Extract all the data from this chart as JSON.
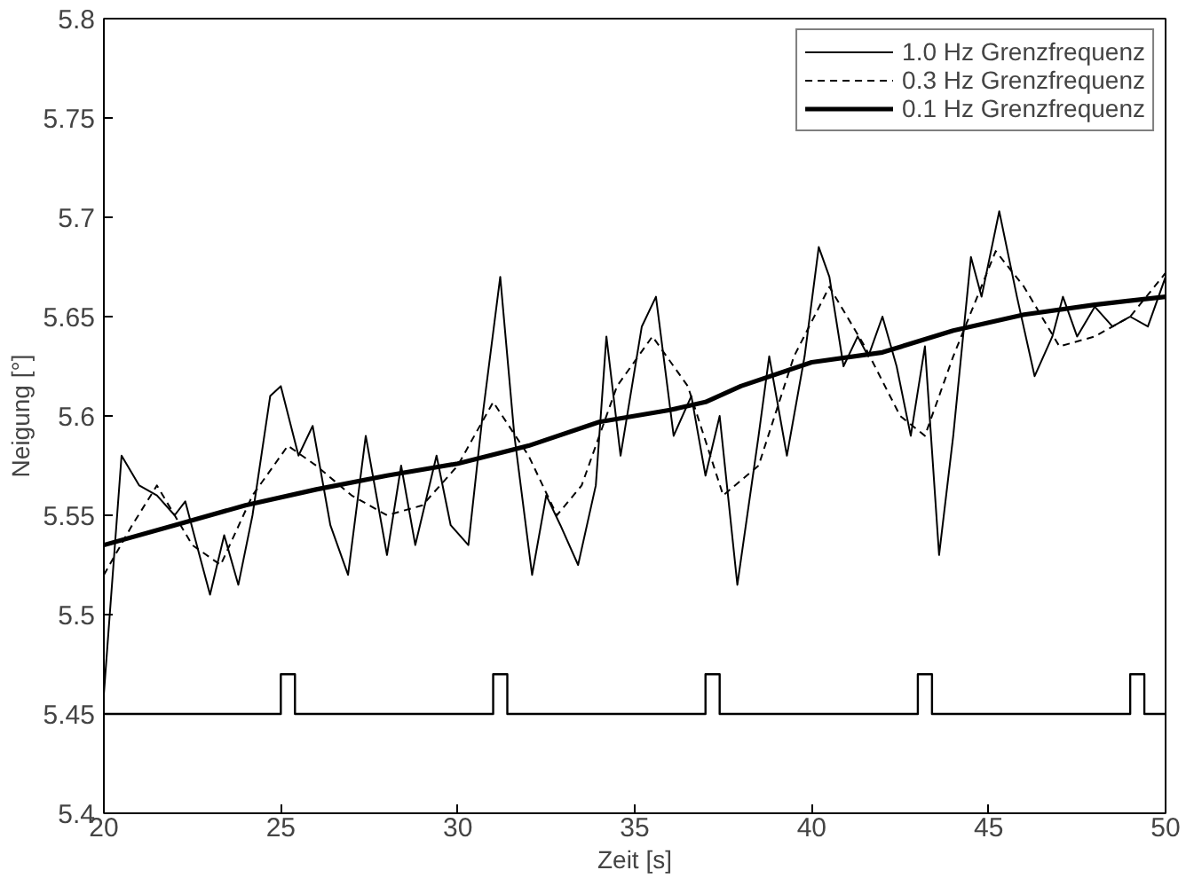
{
  "chart_data": {
    "type": "line",
    "xlabel": "Zeit [s]",
    "ylabel": "Neigung [°]",
    "xlim": [
      20,
      50
    ],
    "xticks": [
      20,
      25,
      30,
      35,
      40,
      45,
      50
    ],
    "ylim": [
      5.4,
      5.8
    ],
    "yticks": [
      5.4,
      5.45,
      5.5,
      5.55,
      5.6,
      5.65,
      5.7,
      5.75,
      5.8
    ],
    "grid": false,
    "legend": "top right",
    "marker": "none",
    "series": [
      {
        "name": "1.0 Hz Grenzfrequenz",
        "color": "#000000",
        "line_style": "solid",
        "x": [
          20,
          20.5,
          21,
          21.5,
          22,
          22.3,
          22.7,
          23,
          23.4,
          23.8,
          24.2,
          24.7,
          25.0,
          25.5,
          25.9,
          26.4,
          26.9,
          27.4,
          28,
          28.4,
          28.8,
          29.4,
          29.8,
          30.3,
          30.7,
          31.2,
          31.6,
          32.1,
          32.5,
          32.9,
          33.4,
          33.9,
          34.2,
          34.6,
          35.2,
          35.6,
          36.1,
          36.6,
          37.0,
          37.4,
          37.9,
          38.5,
          38.8,
          39.3,
          39.8,
          40.2,
          40.5,
          40.9,
          41.3,
          41.6,
          42.0,
          42.4,
          42.8,
          43.2,
          43.6,
          44.0,
          44.5,
          44.8,
          45.3,
          45.8,
          46.3,
          46.8,
          47.1,
          47.5,
          48.0,
          48.5,
          49.0,
          49.5,
          50
        ],
        "values": [
          5.46,
          5.58,
          5.565,
          5.56,
          5.55,
          5.557,
          5.53,
          5.51,
          5.54,
          5.515,
          5.55,
          5.61,
          5.615,
          5.58,
          5.595,
          5.545,
          5.52,
          5.59,
          5.53,
          5.575,
          5.535,
          5.58,
          5.545,
          5.535,
          5.6,
          5.67,
          5.59,
          5.52,
          5.56,
          5.545,
          5.525,
          5.565,
          5.64,
          5.58,
          5.645,
          5.66,
          5.59,
          5.61,
          5.57,
          5.6,
          5.515,
          5.59,
          5.63,
          5.58,
          5.63,
          5.685,
          5.67,
          5.625,
          5.64,
          5.63,
          5.65,
          5.625,
          5.59,
          5.635,
          5.53,
          5.59,
          5.68,
          5.66,
          5.703,
          5.66,
          5.62,
          5.64,
          5.66,
          5.64,
          5.655,
          5.645,
          5.65,
          5.645,
          5.67
        ]
      },
      {
        "name": "0.3 Hz Grenzfrequenz",
        "color": "#000000",
        "line_style": "dashed",
        "x": [
          20,
          20.8,
          21.5,
          22.5,
          23.3,
          24.2,
          25.2,
          26,
          27,
          28,
          29,
          30,
          31,
          32,
          32.8,
          33.5,
          34.5,
          35.5,
          36.5,
          37.5,
          38.5,
          39.5,
          40.5,
          41.5,
          42.5,
          43.2,
          44,
          45.2,
          46,
          47,
          48,
          49,
          50
        ],
        "values": [
          5.52,
          5.545,
          5.565,
          5.535,
          5.525,
          5.56,
          5.585,
          5.575,
          5.56,
          5.55,
          5.555,
          5.575,
          5.607,
          5.58,
          5.55,
          5.565,
          5.615,
          5.64,
          5.615,
          5.56,
          5.575,
          5.63,
          5.665,
          5.635,
          5.6,
          5.59,
          5.63,
          5.683,
          5.665,
          5.635,
          5.64,
          5.65,
          5.672
        ]
      },
      {
        "name": "0.1 Hz Grenzfrequenz",
        "color": "#000000",
        "line_style": "solid",
        "x": [
          20,
          22,
          24,
          26,
          28,
          30,
          32,
          34,
          36,
          37,
          38,
          40,
          42,
          44,
          46,
          48,
          50
        ],
        "values": [
          5.535,
          5.545,
          5.555,
          5.563,
          5.57,
          5.576,
          5.585,
          5.597,
          5.603,
          5.607,
          5.615,
          5.627,
          5.632,
          5.643,
          5.651,
          5.656,
          5.66
        ]
      },
      {
        "color": "#000000",
        "line_style": "solid",
        "x": [
          20,
          25,
          25,
          25.4,
          25.4,
          31,
          31,
          31.4,
          31.4,
          37,
          37,
          37.4,
          37.4,
          43,
          43,
          43.4,
          43.4,
          49,
          49,
          49.4,
          49.4,
          50
        ],
        "values": [
          5.45,
          5.45,
          5.47,
          5.47,
          5.45,
          5.45,
          5.47,
          5.47,
          5.45,
          5.45,
          5.47,
          5.47,
          5.45,
          5.45,
          5.47,
          5.47,
          5.45,
          5.45,
          5.47,
          5.47,
          5.45,
          5.45
        ]
      }
    ]
  }
}
